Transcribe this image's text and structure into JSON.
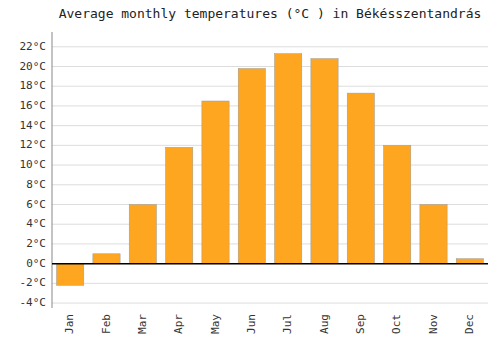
{
  "chart_data": {
    "type": "bar",
    "title": "Average monthly temperatures (°C ) in Békésszentandrás",
    "categories": [
      "Jan",
      "Feb",
      "Mar",
      "Apr",
      "May",
      "Jun",
      "Jul",
      "Aug",
      "Sep",
      "Oct",
      "Nov",
      "Dec"
    ],
    "values": [
      -2.2,
      1.0,
      6.0,
      11.8,
      16.5,
      19.8,
      21.3,
      20.8,
      17.3,
      12.0,
      6.0,
      0.5
    ],
    "color": "#FFA620",
    "ylim": [
      -4.5,
      23.5
    ],
    "yticks": [
      {
        "value": -4,
        "label": "-4°C"
      },
      {
        "value": -2,
        "label": "-2°C"
      },
      {
        "value": 0,
        "label": "0°C"
      },
      {
        "value": 2,
        "label": "2°C"
      },
      {
        "value": 4,
        "label": "4°C"
      },
      {
        "value": 6,
        "label": "6°C"
      },
      {
        "value": 8,
        "label": "8°C"
      },
      {
        "value": 10,
        "label": "10°C"
      },
      {
        "value": 12,
        "label": "12°C"
      },
      {
        "value": 14,
        "label": "14°C"
      },
      {
        "value": 16,
        "label": "16°C"
      },
      {
        "value": 18,
        "label": "18°C"
      },
      {
        "value": 20,
        "label": "20°C"
      },
      {
        "value": 22,
        "label": "22°C"
      }
    ],
    "grid": true
  }
}
